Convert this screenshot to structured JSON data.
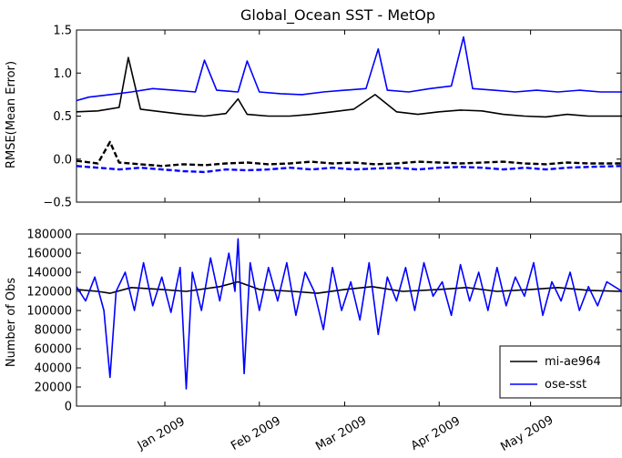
{
  "chart_data": [
    {
      "type": "line",
      "title": "Global_Ocean SST - MetOp",
      "xlabel": "",
      "ylabel": "RMSE(Mean Error)",
      "ylim": [
        -0.5,
        1.5
      ],
      "yticks": [
        "1.5",
        "1.0",
        "0.5",
        "0.0",
        "−0.5"
      ],
      "yticks_values": [
        1.5,
        1.0,
        0.5,
        0.0,
        -0.5
      ],
      "xlim": [
        "2008-12-03",
        "2009-05-31"
      ],
      "grid": false,
      "series": [
        {
          "name": "mi-ae964",
          "color": "#000000",
          "kind": "rmse",
          "x": [
            "2008-12-03",
            "2008-12-10",
            "2008-12-17",
            "2008-12-20",
            "2008-12-24",
            "2008-12-31",
            "2009-01-07",
            "2009-01-14",
            "2009-01-21",
            "2009-01-25",
            "2009-01-28",
            "2009-02-04",
            "2009-02-11",
            "2009-02-18",
            "2009-02-25",
            "2009-03-04",
            "2009-03-11",
            "2009-03-18",
            "2009-03-25",
            "2009-04-01",
            "2009-04-08",
            "2009-04-15",
            "2009-04-22",
            "2009-04-29",
            "2009-05-06",
            "2009-05-13",
            "2009-05-20",
            "2009-05-31"
          ],
          "values": [
            0.55,
            0.56,
            0.6,
            1.18,
            0.58,
            0.55,
            0.52,
            0.5,
            0.53,
            0.7,
            0.52,
            0.5,
            0.5,
            0.52,
            0.55,
            0.58,
            0.75,
            0.55,
            0.52,
            0.55,
            0.57,
            0.56,
            0.52,
            0.5,
            0.49,
            0.52,
            0.5,
            0.5
          ]
        },
        {
          "name": "mi-ae964",
          "color": "#000000",
          "kind": "mean_error",
          "x": [
            "2008-12-03",
            "2008-12-10",
            "2008-12-14",
            "2008-12-17",
            "2008-12-24",
            "2008-12-31",
            "2009-01-07",
            "2009-01-14",
            "2009-01-21",
            "2009-01-28",
            "2009-02-04",
            "2009-02-11",
            "2009-02-18",
            "2009-02-25",
            "2009-03-04",
            "2009-03-11",
            "2009-03-18",
            "2009-03-25",
            "2009-04-01",
            "2009-04-08",
            "2009-04-15",
            "2009-04-22",
            "2009-04-29",
            "2009-05-06",
            "2009-05-13",
            "2009-05-20",
            "2009-05-31"
          ],
          "values": [
            -0.02,
            -0.05,
            0.2,
            -0.04,
            -0.06,
            -0.08,
            -0.06,
            -0.07,
            -0.05,
            -0.04,
            -0.06,
            -0.05,
            -0.03,
            -0.05,
            -0.04,
            -0.06,
            -0.05,
            -0.03,
            -0.04,
            -0.05,
            -0.04,
            -0.03,
            -0.05,
            -0.06,
            -0.04,
            -0.05,
            -0.05
          ]
        },
        {
          "name": "ose-sst",
          "color": "#0000ff",
          "kind": "rmse",
          "x": [
            "2008-12-03",
            "2008-12-07",
            "2008-12-14",
            "2008-12-21",
            "2008-12-28",
            "2009-01-04",
            "2009-01-11",
            "2009-01-14",
            "2009-01-18",
            "2009-01-25",
            "2009-01-28",
            "2009-02-01",
            "2009-02-08",
            "2009-02-15",
            "2009-02-22",
            "2009-03-01",
            "2009-03-08",
            "2009-03-12",
            "2009-03-15",
            "2009-03-22",
            "2009-03-29",
            "2009-04-05",
            "2009-04-09",
            "2009-04-12",
            "2009-04-19",
            "2009-04-26",
            "2009-05-03",
            "2009-05-10",
            "2009-05-17",
            "2009-05-24",
            "2009-05-31"
          ],
          "values": [
            0.68,
            0.72,
            0.75,
            0.78,
            0.82,
            0.8,
            0.78,
            1.15,
            0.8,
            0.78,
            1.14,
            0.78,
            0.76,
            0.75,
            0.78,
            0.8,
            0.82,
            1.28,
            0.8,
            0.78,
            0.82,
            0.85,
            1.42,
            0.82,
            0.8,
            0.78,
            0.8,
            0.78,
            0.8,
            0.78,
            0.78
          ]
        },
        {
          "name": "ose-sst",
          "color": "#0000ff",
          "kind": "mean_error",
          "x": [
            "2008-12-03",
            "2008-12-10",
            "2008-12-17",
            "2008-12-24",
            "2008-12-31",
            "2009-01-07",
            "2009-01-14",
            "2009-01-21",
            "2009-01-28",
            "2009-02-04",
            "2009-02-11",
            "2009-02-18",
            "2009-02-25",
            "2009-03-04",
            "2009-03-11",
            "2009-03-18",
            "2009-03-25",
            "2009-04-01",
            "2009-04-08",
            "2009-04-15",
            "2009-04-22",
            "2009-04-29",
            "2009-05-06",
            "2009-05-13",
            "2009-05-20",
            "2009-05-31"
          ],
          "values": [
            -0.08,
            -0.1,
            -0.12,
            -0.1,
            -0.12,
            -0.14,
            -0.15,
            -0.12,
            -0.13,
            -0.12,
            -0.1,
            -0.12,
            -0.1,
            -0.12,
            -0.11,
            -0.1,
            -0.12,
            -0.1,
            -0.09,
            -0.1,
            -0.12,
            -0.1,
            -0.12,
            -0.1,
            -0.09,
            -0.08
          ]
        }
      ]
    },
    {
      "type": "line",
      "title": "",
      "xlabel": "",
      "ylabel": "Number of Obs",
      "ylim": [
        0,
        180000
      ],
      "yticks": [
        "180000",
        "160000",
        "140000",
        "120000",
        "100000",
        "80000",
        "60000",
        "40000",
        "20000",
        "0"
      ],
      "yticks_values": [
        180000,
        160000,
        140000,
        120000,
        100000,
        80000,
        60000,
        40000,
        20000,
        0
      ],
      "xlim": [
        "2008-12-03",
        "2009-05-31"
      ],
      "xticks": [
        "Jan 2009",
        "Feb 2009",
        "Mar 2009",
        "Apr 2009",
        "May 2009"
      ],
      "xticks_values": [
        "2009-01-01",
        "2009-02-01",
        "2009-03-01",
        "2009-04-01",
        "2009-05-01"
      ],
      "legend": "lower-right",
      "grid": false,
      "series": [
        {
          "name": "mi-ae964",
          "color": "#000000",
          "x": [
            "2008-12-03",
            "2008-12-10",
            "2008-12-14",
            "2008-12-21",
            "2008-12-31",
            "2009-01-08",
            "2009-01-19",
            "2009-01-25",
            "2009-02-01",
            "2009-02-12",
            "2009-02-20",
            "2009-03-01",
            "2009-03-10",
            "2009-03-20",
            "2009-04-01",
            "2009-04-10",
            "2009-04-20",
            "2009-05-01",
            "2009-05-10",
            "2009-05-20",
            "2009-05-31"
          ],
          "values": [
            122000,
            120000,
            118000,
            124000,
            122000,
            120000,
            125000,
            130000,
            122000,
            120000,
            118000,
            122000,
            125000,
            120000,
            122000,
            124000,
            120000,
            122000,
            124000,
            121000,
            120000
          ]
        },
        {
          "name": "ose-sst",
          "color": "#0000ff",
          "x": [
            "2008-12-03",
            "2008-12-06",
            "2008-12-09",
            "2008-12-12",
            "2008-12-14",
            "2008-12-16",
            "2008-12-19",
            "2008-12-22",
            "2008-12-25",
            "2008-12-28",
            "2008-12-31",
            "2009-01-03",
            "2009-01-06",
            "2009-01-08",
            "2009-01-10",
            "2009-01-13",
            "2009-01-16",
            "2009-01-19",
            "2009-01-22",
            "2009-01-24",
            "2009-01-25",
            "2009-01-27",
            "2009-01-29",
            "2009-02-01",
            "2009-02-04",
            "2009-02-07",
            "2009-02-10",
            "2009-02-13",
            "2009-02-16",
            "2009-02-19",
            "2009-02-22",
            "2009-02-25",
            "2009-02-28",
            "2009-03-03",
            "2009-03-06",
            "2009-03-09",
            "2009-03-12",
            "2009-03-15",
            "2009-03-18",
            "2009-03-21",
            "2009-03-24",
            "2009-03-27",
            "2009-03-30",
            "2009-04-02",
            "2009-04-05",
            "2009-04-08",
            "2009-04-11",
            "2009-04-14",
            "2009-04-17",
            "2009-04-20",
            "2009-04-23",
            "2009-04-26",
            "2009-04-29",
            "2009-05-02",
            "2009-05-05",
            "2009-05-08",
            "2009-05-11",
            "2009-05-14",
            "2009-05-17",
            "2009-05-20",
            "2009-05-23",
            "2009-05-26",
            "2009-05-31"
          ],
          "values": [
            125000,
            110000,
            135000,
            100000,
            30000,
            120000,
            140000,
            100000,
            150000,
            105000,
            135000,
            98000,
            145000,
            18000,
            140000,
            100000,
            155000,
            110000,
            160000,
            120000,
            175000,
            34000,
            150000,
            100000,
            145000,
            110000,
            150000,
            95000,
            140000,
            120000,
            80000,
            145000,
            100000,
            130000,
            90000,
            150000,
            75000,
            135000,
            110000,
            145000,
            100000,
            150000,
            115000,
            130000,
            95000,
            148000,
            110000,
            140000,
            100000,
            145000,
            105000,
            135000,
            115000,
            150000,
            95000,
            130000,
            110000,
            140000,
            100000,
            125000,
            105000,
            130000,
            120000
          ]
        }
      ]
    }
  ]
}
